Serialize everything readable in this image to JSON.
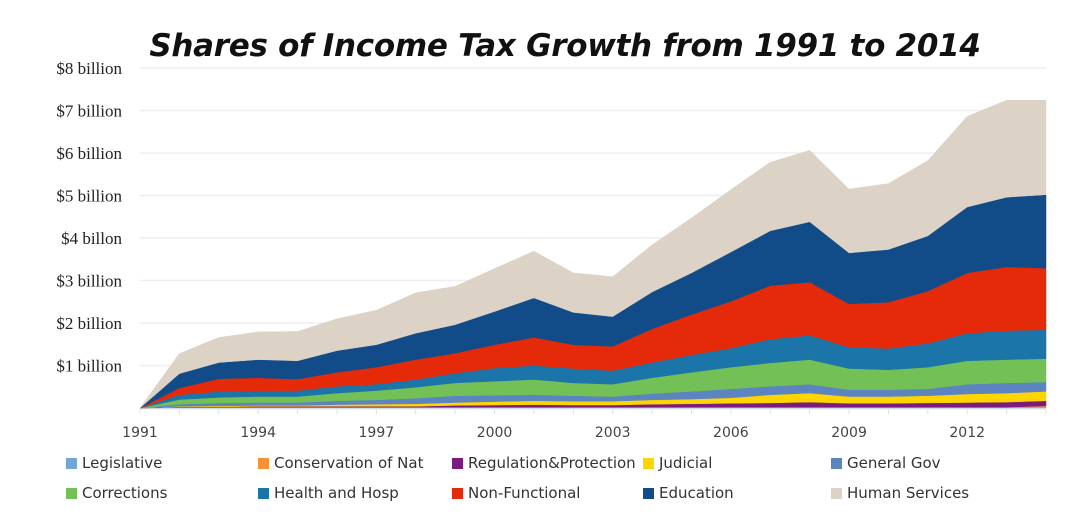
{
  "chart_data": {
    "type": "area",
    "stacked": true,
    "title": "Shares of Income Tax Growth from 1991 to 2014",
    "xlabel": "",
    "ylabel": "",
    "x": [
      1991,
      1992,
      1993,
      1994,
      1995,
      1996,
      1997,
      1998,
      1999,
      2000,
      2001,
      2002,
      2003,
      2004,
      2005,
      2006,
      2007,
      2008,
      2009,
      2010,
      2011,
      2012,
      2013,
      2014
    ],
    "x_ticks": [
      "1991",
      "1994",
      "1997",
      "2000",
      "2003",
      "2006",
      "2009",
      "2012"
    ],
    "x_tick_values": [
      1991,
      1994,
      1997,
      2000,
      2003,
      2006,
      2009,
      2012
    ],
    "y_ticks": [
      {
        "value": 1,
        "label": "$1 billion"
      },
      {
        "value": 2,
        "label": "$2 billion"
      },
      {
        "value": 3,
        "label": "$3 billion"
      },
      {
        "value": 4,
        "label": "$4 billon"
      },
      {
        "value": 5,
        "label": "$5 billion"
      },
      {
        "value": 6,
        "label": "$6 billion"
      },
      {
        "value": 7,
        "label": "$7 billion"
      },
      {
        "value": 8,
        "label": "$8 billion"
      }
    ],
    "ylim": [
      0,
      8
    ],
    "xlim": [
      1991,
      2014
    ],
    "grid": true,
    "legend_placement": "bottom",
    "series": [
      {
        "name": "Legislative",
        "color": "#6fa8d8",
        "values": [
          0,
          0.01,
          0.01,
          0.01,
          0.01,
          0.01,
          0.01,
          0.01,
          0.01,
          0.01,
          0.01,
          0.01,
          0.01,
          0.01,
          0.01,
          0.01,
          0.01,
          0.01,
          0.01,
          0.01,
          0.01,
          0.01,
          0.01,
          0.01
        ]
      },
      {
        "name": "Conservation of Nat",
        "color": "#f59233",
        "values": [
          0,
          0.01,
          0.01,
          0.01,
          0.01,
          0.01,
          0.01,
          0.01,
          0.01,
          0.01,
          0.01,
          0.01,
          0.01,
          0.01,
          0.01,
          0.01,
          0.01,
          0.01,
          0.01,
          0.01,
          0.01,
          0.01,
          0.01,
          0.04
        ]
      },
      {
        "name": "Regulation&Protection",
        "color": "#7d1a7e",
        "values": [
          0,
          0.01,
          0.01,
          0.02,
          0.02,
          0.02,
          0.02,
          0.02,
          0.04,
          0.05,
          0.06,
          0.05,
          0.05,
          0.07,
          0.08,
          0.09,
          0.1,
          0.12,
          0.09,
          0.09,
          0.1,
          0.11,
          0.12,
          0.12
        ]
      },
      {
        "name": "Judicial",
        "color": "#ffd400",
        "values": [
          0,
          0.01,
          0.02,
          0.02,
          0.02,
          0.04,
          0.05,
          0.06,
          0.07,
          0.08,
          0.09,
          0.09,
          0.09,
          0.1,
          0.11,
          0.13,
          0.19,
          0.21,
          0.16,
          0.16,
          0.17,
          0.2,
          0.21,
          0.22
        ]
      },
      {
        "name": "General Gov",
        "color": "#5b84c0",
        "values": [
          0,
          0.05,
          0.07,
          0.07,
          0.07,
          0.09,
          0.1,
          0.13,
          0.16,
          0.15,
          0.14,
          0.13,
          0.11,
          0.15,
          0.18,
          0.21,
          0.2,
          0.21,
          0.16,
          0.16,
          0.16,
          0.23,
          0.24,
          0.22
        ]
      },
      {
        "name": "Corrections",
        "color": "#72c056",
        "values": [
          0,
          0.11,
          0.13,
          0.14,
          0.14,
          0.18,
          0.22,
          0.26,
          0.3,
          0.33,
          0.36,
          0.3,
          0.29,
          0.37,
          0.45,
          0.51,
          0.55,
          0.58,
          0.5,
          0.47,
          0.51,
          0.55,
          0.55,
          0.55
        ]
      },
      {
        "name": "Health and Hosp",
        "color": "#1b75a8",
        "values": [
          0,
          0.11,
          0.14,
          0.14,
          0.14,
          0.16,
          0.15,
          0.18,
          0.23,
          0.31,
          0.33,
          0.34,
          0.32,
          0.36,
          0.41,
          0.45,
          0.56,
          0.57,
          0.5,
          0.5,
          0.56,
          0.65,
          0.68,
          0.68
        ]
      },
      {
        "name": "Non-Functional",
        "color": "#e52a0a",
        "values": [
          0,
          0.16,
          0.3,
          0.3,
          0.27,
          0.33,
          0.4,
          0.47,
          0.47,
          0.55,
          0.66,
          0.56,
          0.57,
          0.79,
          0.95,
          1.1,
          1.26,
          1.25,
          1.02,
          1.09,
          1.23,
          1.42,
          1.5,
          1.45
        ]
      },
      {
        "name": "Education",
        "color": "#114b88",
        "values": [
          0,
          0.34,
          0.38,
          0.43,
          0.43,
          0.51,
          0.53,
          0.62,
          0.67,
          0.78,
          0.93,
          0.76,
          0.7,
          0.87,
          0.98,
          1.16,
          1.29,
          1.42,
          1.2,
          1.24,
          1.3,
          1.55,
          1.64,
          1.73
        ]
      },
      {
        "name": "Human Services",
        "color": "#dcd2c6",
        "values": [
          0,
          0.47,
          0.59,
          0.65,
          0.69,
          0.75,
          0.81,
          0.95,
          0.9,
          1.01,
          1.1,
          0.93,
          0.94,
          1.11,
          1.29,
          1.47,
          1.61,
          1.68,
          1.5,
          1.55,
          1.77,
          2.13,
          2.28,
          2.22
        ]
      }
    ]
  }
}
